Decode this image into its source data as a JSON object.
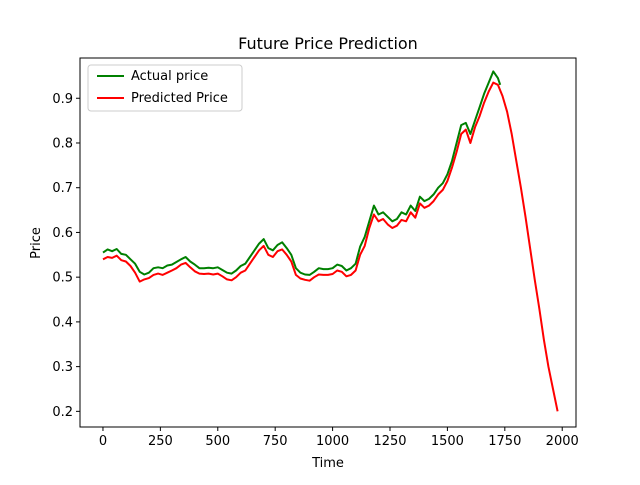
{
  "chart_data": {
    "type": "line",
    "title": "Future Price Prediction",
    "xlabel": "Time",
    "ylabel": "Price",
    "xlim": [
      -100,
      2060
    ],
    "ylim": [
      0.165,
      0.99
    ],
    "xticks": [
      0,
      250,
      500,
      750,
      1000,
      1250,
      1500,
      1750,
      2000
    ],
    "yticks": [
      0.2,
      0.3,
      0.4,
      0.5,
      0.6,
      0.7,
      0.8,
      0.9
    ],
    "grid": false,
    "legend_position": "upper-left",
    "series": [
      {
        "name": "Actual price",
        "color": "#008000",
        "points": [
          [
            0,
            0.555
          ],
          [
            20,
            0.562
          ],
          [
            40,
            0.558
          ],
          [
            60,
            0.563
          ],
          [
            80,
            0.552
          ],
          [
            100,
            0.55
          ],
          [
            120,
            0.54
          ],
          [
            140,
            0.53
          ],
          [
            160,
            0.512
          ],
          [
            180,
            0.506
          ],
          [
            200,
            0.51
          ],
          [
            220,
            0.52
          ],
          [
            240,
            0.522
          ],
          [
            260,
            0.52
          ],
          [
            280,
            0.526
          ],
          [
            300,
            0.528
          ],
          [
            320,
            0.534
          ],
          [
            340,
            0.54
          ],
          [
            360,
            0.545
          ],
          [
            380,
            0.535
          ],
          [
            400,
            0.528
          ],
          [
            420,
            0.52
          ],
          [
            440,
            0.52
          ],
          [
            460,
            0.521
          ],
          [
            480,
            0.52
          ],
          [
            500,
            0.522
          ],
          [
            520,
            0.516
          ],
          [
            540,
            0.51
          ],
          [
            560,
            0.508
          ],
          [
            580,
            0.515
          ],
          [
            600,
            0.525
          ],
          [
            620,
            0.53
          ],
          [
            640,
            0.545
          ],
          [
            660,
            0.56
          ],
          [
            680,
            0.575
          ],
          [
            700,
            0.585
          ],
          [
            720,
            0.565
          ],
          [
            740,
            0.56
          ],
          [
            760,
            0.572
          ],
          [
            780,
            0.578
          ],
          [
            800,
            0.565
          ],
          [
            820,
            0.55
          ],
          [
            840,
            0.52
          ],
          [
            860,
            0.51
          ],
          [
            880,
            0.506
          ],
          [
            900,
            0.505
          ],
          [
            920,
            0.512
          ],
          [
            940,
            0.52
          ],
          [
            960,
            0.518
          ],
          [
            980,
            0.518
          ],
          [
            1000,
            0.52
          ],
          [
            1020,
            0.528
          ],
          [
            1040,
            0.525
          ],
          [
            1060,
            0.515
          ],
          [
            1080,
            0.52
          ],
          [
            1100,
            0.53
          ],
          [
            1120,
            0.568
          ],
          [
            1140,
            0.59
          ],
          [
            1160,
            0.625
          ],
          [
            1180,
            0.66
          ],
          [
            1200,
            0.64
          ],
          [
            1220,
            0.645
          ],
          [
            1240,
            0.635
          ],
          [
            1260,
            0.625
          ],
          [
            1280,
            0.63
          ],
          [
            1300,
            0.645
          ],
          [
            1320,
            0.64
          ],
          [
            1340,
            0.66
          ],
          [
            1360,
            0.648
          ],
          [
            1380,
            0.68
          ],
          [
            1400,
            0.67
          ],
          [
            1420,
            0.675
          ],
          [
            1440,
            0.685
          ],
          [
            1460,
            0.7
          ],
          [
            1480,
            0.71
          ],
          [
            1500,
            0.73
          ],
          [
            1520,
            0.76
          ],
          [
            1540,
            0.8
          ],
          [
            1560,
            0.84
          ],
          [
            1580,
            0.845
          ],
          [
            1600,
            0.82
          ],
          [
            1620,
            0.85
          ],
          [
            1640,
            0.88
          ],
          [
            1660,
            0.91
          ],
          [
            1680,
            0.935
          ],
          [
            1700,
            0.96
          ],
          [
            1720,
            0.945
          ],
          [
            1730,
            0.93
          ]
        ]
      },
      {
        "name": "Predicted Price",
        "color": "#ff0000",
        "points": [
          [
            0,
            0.54
          ],
          [
            20,
            0.545
          ],
          [
            40,
            0.543
          ],
          [
            60,
            0.548
          ],
          [
            80,
            0.538
          ],
          [
            100,
            0.535
          ],
          [
            120,
            0.525
          ],
          [
            140,
            0.51
          ],
          [
            160,
            0.49
          ],
          [
            180,
            0.495
          ],
          [
            200,
            0.498
          ],
          [
            220,
            0.505
          ],
          [
            240,
            0.508
          ],
          [
            260,
            0.505
          ],
          [
            280,
            0.51
          ],
          [
            300,
            0.515
          ],
          [
            320,
            0.52
          ],
          [
            340,
            0.528
          ],
          [
            360,
            0.532
          ],
          [
            380,
            0.522
          ],
          [
            400,
            0.513
          ],
          [
            420,
            0.508
          ],
          [
            440,
            0.507
          ],
          [
            460,
            0.508
          ],
          [
            480,
            0.506
          ],
          [
            500,
            0.508
          ],
          [
            520,
            0.502
          ],
          [
            540,
            0.495
          ],
          [
            560,
            0.493
          ],
          [
            580,
            0.5
          ],
          [
            600,
            0.51
          ],
          [
            620,
            0.515
          ],
          [
            640,
            0.53
          ],
          [
            660,
            0.545
          ],
          [
            680,
            0.56
          ],
          [
            700,
            0.57
          ],
          [
            720,
            0.55
          ],
          [
            740,
            0.545
          ],
          [
            760,
            0.558
          ],
          [
            780,
            0.562
          ],
          [
            800,
            0.55
          ],
          [
            820,
            0.535
          ],
          [
            840,
            0.505
          ],
          [
            860,
            0.497
          ],
          [
            880,
            0.494
          ],
          [
            900,
            0.492
          ],
          [
            920,
            0.5
          ],
          [
            940,
            0.506
          ],
          [
            960,
            0.505
          ],
          [
            980,
            0.505
          ],
          [
            1000,
            0.507
          ],
          [
            1020,
            0.515
          ],
          [
            1040,
            0.512
          ],
          [
            1060,
            0.502
          ],
          [
            1080,
            0.505
          ],
          [
            1100,
            0.515
          ],
          [
            1120,
            0.55
          ],
          [
            1140,
            0.57
          ],
          [
            1160,
            0.61
          ],
          [
            1180,
            0.64
          ],
          [
            1200,
            0.625
          ],
          [
            1220,
            0.63
          ],
          [
            1240,
            0.618
          ],
          [
            1260,
            0.61
          ],
          [
            1280,
            0.615
          ],
          [
            1300,
            0.628
          ],
          [
            1320,
            0.625
          ],
          [
            1340,
            0.645
          ],
          [
            1360,
            0.633
          ],
          [
            1380,
            0.665
          ],
          [
            1400,
            0.655
          ],
          [
            1420,
            0.66
          ],
          [
            1440,
            0.67
          ],
          [
            1460,
            0.685
          ],
          [
            1480,
            0.695
          ],
          [
            1500,
            0.715
          ],
          [
            1520,
            0.745
          ],
          [
            1540,
            0.78
          ],
          [
            1560,
            0.82
          ],
          [
            1580,
            0.83
          ],
          [
            1600,
            0.8
          ],
          [
            1620,
            0.835
          ],
          [
            1640,
            0.86
          ],
          [
            1660,
            0.89
          ],
          [
            1680,
            0.915
          ],
          [
            1700,
            0.935
          ],
          [
            1720,
            0.93
          ],
          [
            1740,
            0.905
          ],
          [
            1760,
            0.87
          ],
          [
            1780,
            0.82
          ],
          [
            1800,
            0.76
          ],
          [
            1820,
            0.7
          ],
          [
            1840,
            0.635
          ],
          [
            1860,
            0.565
          ],
          [
            1880,
            0.495
          ],
          [
            1900,
            0.43
          ],
          [
            1920,
            0.36
          ],
          [
            1940,
            0.3
          ],
          [
            1960,
            0.25
          ],
          [
            1980,
            0.2
          ]
        ]
      }
    ]
  }
}
